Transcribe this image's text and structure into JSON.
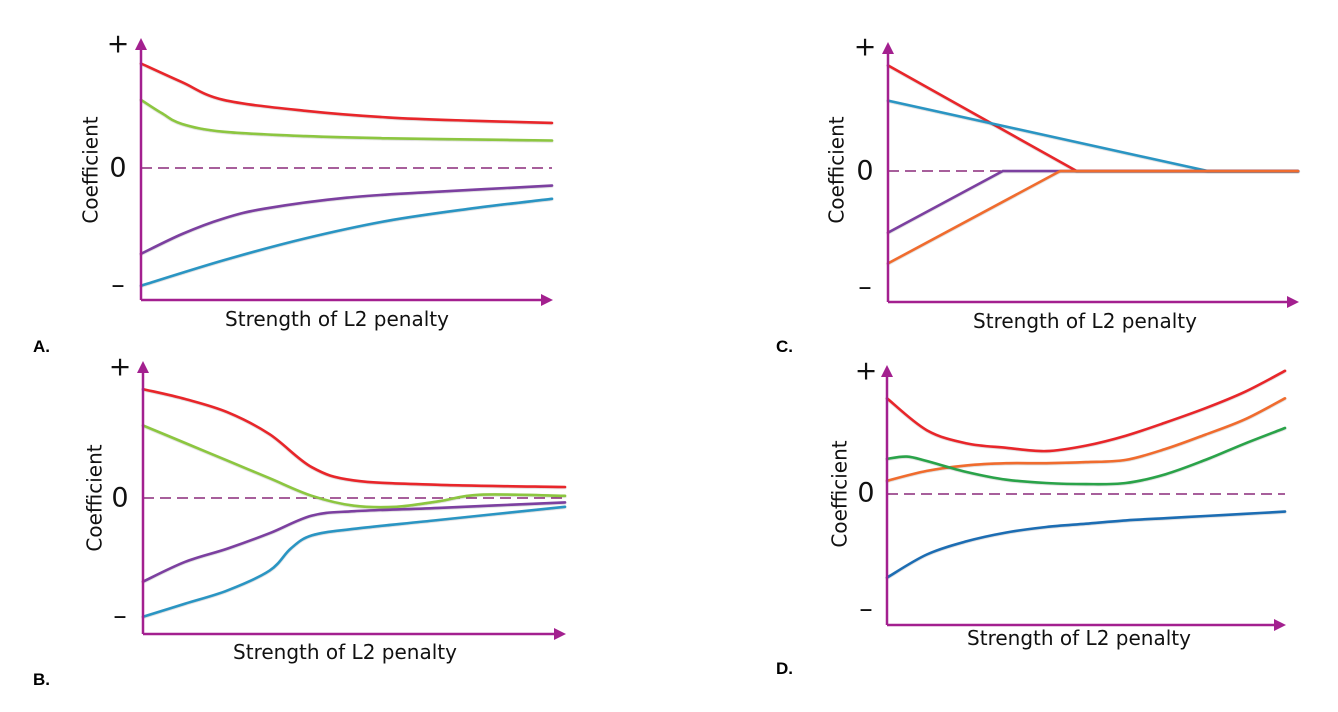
{
  "chart_data": [
    {
      "type": "line",
      "panel_label": "A.",
      "xlabel": "Strength of L2 penalty",
      "ylabel": "Coefficient",
      "y_ticks": [
        "+",
        "0",
        "–"
      ],
      "x_range": [
        0,
        1
      ],
      "ylim": [
        -1.1,
        1.1
      ],
      "grid": false,
      "series": [
        {
          "color": "#e8262c",
          "x": [
            0,
            0.1,
            0.2,
            0.4,
            0.6,
            0.8,
            1
          ],
          "values": [
            0.95,
            0.78,
            0.62,
            0.52,
            0.46,
            0.43,
            0.41
          ]
        },
        {
          "color": "#8cc63f",
          "x": [
            0,
            0.05,
            0.1,
            0.2,
            0.4,
            0.6,
            0.8,
            1
          ],
          "values": [
            0.62,
            0.5,
            0.4,
            0.33,
            0.29,
            0.27,
            0.26,
            0.25
          ]
        },
        {
          "color": "#7b3fa0",
          "x": [
            0,
            0.1,
            0.2,
            0.3,
            0.5,
            0.7,
            1
          ],
          "values": [
            -0.78,
            -0.6,
            -0.46,
            -0.37,
            -0.27,
            -0.22,
            -0.16
          ]
        },
        {
          "color": "#2b95c3",
          "x": [
            0,
            0.2,
            0.4,
            0.6,
            0.8,
            1
          ],
          "values": [
            -1.07,
            -0.84,
            -0.64,
            -0.48,
            -0.37,
            -0.28
          ]
        }
      ]
    },
    {
      "type": "line",
      "panel_label": "B.",
      "xlabel": "Strength of L2 penalty",
      "ylabel": "Coefficient",
      "y_ticks": [
        "+",
        "0",
        "–"
      ],
      "x_range": [
        0,
        1
      ],
      "ylim": [
        -1.1,
        1.1
      ],
      "grid": false,
      "series": [
        {
          "color": "#e8262c",
          "x": [
            0,
            0.1,
            0.2,
            0.3,
            0.4,
            0.5,
            0.7,
            1
          ],
          "values": [
            0.99,
            0.9,
            0.78,
            0.58,
            0.28,
            0.16,
            0.12,
            0.1
          ]
        },
        {
          "color": "#8cc63f",
          "x": [
            0,
            0.1,
            0.2,
            0.3,
            0.4,
            0.5,
            0.6,
            0.7,
            0.8,
            1
          ],
          "values": [
            0.66,
            0.5,
            0.34,
            0.18,
            0.02,
            -0.07,
            -0.08,
            -0.03,
            0.03,
            0.02
          ]
        },
        {
          "color": "#7b3fa0",
          "x": [
            0,
            0.1,
            0.2,
            0.3,
            0.4,
            0.5,
            0.7,
            1
          ],
          "values": [
            -0.76,
            -0.58,
            -0.46,
            -0.32,
            -0.16,
            -0.12,
            -0.09,
            -0.04
          ]
        },
        {
          "color": "#2b95c3",
          "x": [
            0,
            0.1,
            0.2,
            0.3,
            0.35,
            0.4,
            0.5,
            0.7,
            1
          ],
          "values": [
            -1.08,
            -0.96,
            -0.84,
            -0.66,
            -0.46,
            -0.34,
            -0.28,
            -0.2,
            -0.08
          ]
        }
      ]
    },
    {
      "type": "line",
      "panel_label": "C.",
      "xlabel": "Strength of L2 penalty",
      "ylabel": "Coefficient",
      "y_ticks": [
        "+",
        "0",
        "–"
      ],
      "x_range": [
        0,
        1
      ],
      "ylim": [
        -1.1,
        1.1
      ],
      "grid": false,
      "series": [
        {
          "color": "#e8262c",
          "x": [
            0,
            0.46,
            1
          ],
          "values": [
            0.96,
            0.0,
            0.0
          ]
        },
        {
          "color": "#2b95c3",
          "x": [
            0,
            0.78,
            1
          ],
          "values": [
            0.64,
            0.0,
            0.0
          ]
        },
        {
          "color": "#7b3fa0",
          "x": [
            0,
            0.28,
            1
          ],
          "values": [
            -0.56,
            0.0,
            0.0
          ]
        },
        {
          "color": "#f06c2f",
          "x": [
            0,
            0.42,
            1
          ],
          "values": [
            -0.84,
            0.0,
            0.0
          ]
        }
      ]
    },
    {
      "type": "line",
      "panel_label": "D.",
      "xlabel": "Strength of L2 penalty",
      "ylabel": "Coefficient",
      "y_ticks": [
        "+",
        "0",
        "–"
      ],
      "x_range": [
        0,
        1
      ],
      "ylim": [
        -1.1,
        1.1
      ],
      "grid": false,
      "series": [
        {
          "color": "#e8262c",
          "x": [
            0,
            0.1,
            0.2,
            0.3,
            0.4,
            0.5,
            0.6,
            0.7,
            0.8,
            0.9,
            1
          ],
          "values": [
            0.87,
            0.58,
            0.46,
            0.42,
            0.39,
            0.44,
            0.53,
            0.65,
            0.78,
            0.93,
            1.12
          ]
        },
        {
          "color": "#f06c2f",
          "x": [
            0,
            0.1,
            0.2,
            0.3,
            0.4,
            0.5,
            0.6,
            0.7,
            0.8,
            0.9,
            1
          ],
          "values": [
            0.12,
            0.21,
            0.26,
            0.28,
            0.28,
            0.29,
            0.31,
            0.41,
            0.54,
            0.68,
            0.87
          ]
        },
        {
          "color": "#2aa34a",
          "x": [
            0,
            0.05,
            0.1,
            0.2,
            0.3,
            0.4,
            0.5,
            0.6,
            0.7,
            0.8,
            0.9,
            1
          ],
          "values": [
            0.32,
            0.34,
            0.3,
            0.2,
            0.13,
            0.1,
            0.09,
            0.1,
            0.18,
            0.31,
            0.46,
            0.6
          ]
        },
        {
          "color": "#1f6db3",
          "x": [
            0,
            0.1,
            0.2,
            0.3,
            0.4,
            0.5,
            0.6,
            0.7,
            0.8,
            0.9,
            1
          ],
          "values": [
            -0.76,
            -0.55,
            -0.43,
            -0.35,
            -0.3,
            -0.27,
            -0.24,
            -0.22,
            -0.2,
            -0.18,
            -0.16
          ]
        }
      ]
    }
  ]
}
